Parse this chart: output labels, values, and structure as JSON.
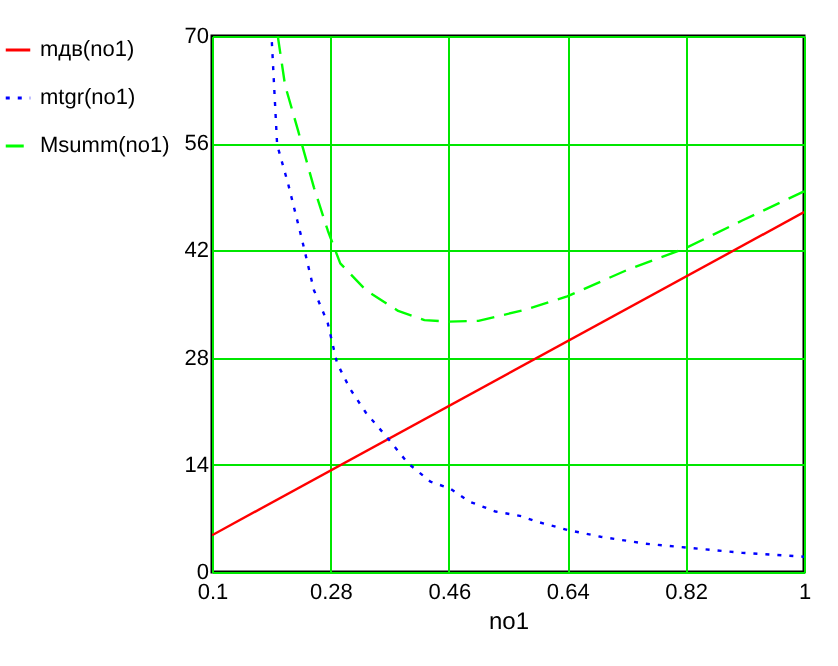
{
  "chart_data": {
    "type": "line",
    "xlabel": "no1",
    "xlim": [
      0.1,
      1
    ],
    "xticks": [
      0.1,
      0.28,
      0.46,
      0.64,
      0.82,
      1
    ],
    "ylim": [
      0,
      70
    ],
    "yticks": [
      0,
      14,
      28,
      42,
      56,
      70
    ],
    "grid": true,
    "legend": "left",
    "series": [
      {
        "name": "mдв(no1)",
        "color": "#ff0000",
        "line_style": "solid",
        "x": [
          0.1,
          1
        ],
        "values": [
          4.8,
          47
        ]
      },
      {
        "name": "mtgr(no1)",
        "color": "#0000ff",
        "line_style": "dotted",
        "x": [
          0.191,
          0.199,
          0.216,
          0.236,
          0.255,
          0.276,
          0.29,
          0.31,
          0.334,
          0.364,
          0.398,
          0.432,
          0.462,
          0.491,
          0.531,
          0.57,
          0.593,
          0.64,
          0.691,
          0.759,
          0.82,
          0.906,
          1
        ],
        "values": [
          69.2,
          55.8,
          50.6,
          43.7,
          36.8,
          32.5,
          27.3,
          23.9,
          20.8,
          17.8,
          14.2,
          11.8,
          10.9,
          9.2,
          7.9,
          7.3,
          6.6,
          5.5,
          4.6,
          3.7,
          3.2,
          2.5,
          2.0
        ]
      },
      {
        "name": "Msumm(no1)",
        "color": "#00ff00",
        "line_style": "dashed",
        "x": [
          0.2,
          0.211,
          0.231,
          0.255,
          0.276,
          0.295,
          0.334,
          0.383,
          0.423,
          0.46,
          0.505,
          0.574,
          0.64,
          0.73,
          0.82,
          0.906,
          1
        ],
        "values": [
          70,
          63.6,
          57.6,
          50.2,
          44.6,
          40.3,
          36.8,
          34.1,
          32.9,
          32.7,
          32.8,
          34.2,
          36.0,
          39.4,
          42.3,
          45.9,
          49.7
        ]
      }
    ]
  }
}
